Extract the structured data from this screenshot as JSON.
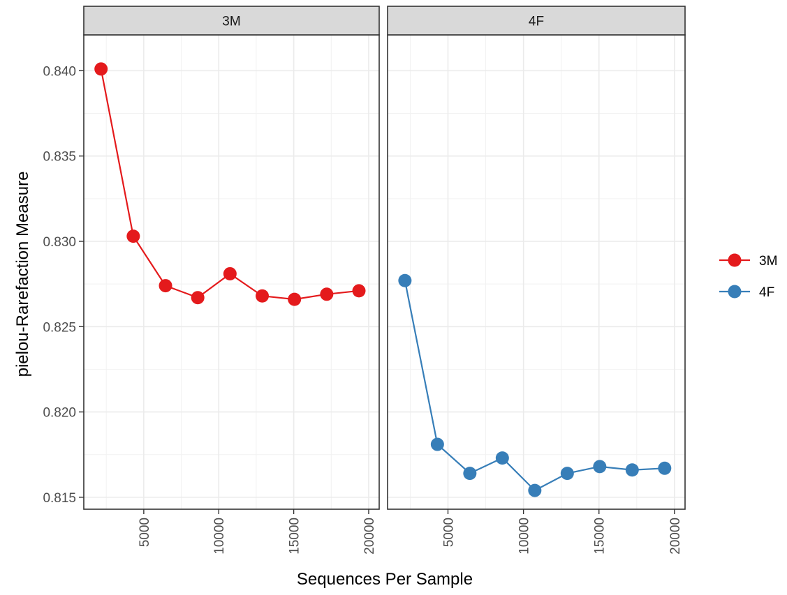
{
  "chart_data": {
    "type": "line",
    "facets": [
      "3M",
      "4F"
    ],
    "xlabel": "Sequences Per Sample",
    "ylabel": "pielou-Rarefaction Measure",
    "xlim": [
      1000,
      20700
    ],
    "ylim": [
      0.8143,
      0.8421
    ],
    "x_ticks": [
      5000,
      10000,
      15000,
      20000
    ],
    "x_tick_labels": [
      "5000",
      "10000",
      "15000",
      "20000"
    ],
    "y_ticks": [
      0.815,
      0.82,
      0.825,
      0.83,
      0.835,
      0.84
    ],
    "y_tick_labels": [
      "0.815",
      "0.820",
      "0.825",
      "0.830",
      "0.835",
      "0.840"
    ],
    "grid": true,
    "legend_position": "right",
    "series": [
      {
        "name": "3M",
        "facet": "3M",
        "color": "#E41A1C",
        "x": [
          2150,
          4300,
          6450,
          8600,
          10750,
          12900,
          15050,
          17200,
          19350
        ],
        "y": [
          0.8401,
          0.8303,
          0.8274,
          0.8267,
          0.8281,
          0.8268,
          0.8266,
          0.8269,
          0.8271
        ]
      },
      {
        "name": "4F",
        "facet": "4F",
        "color": "#377EB8",
        "x": [
          2150,
          4300,
          6450,
          8600,
          10750,
          12900,
          15050,
          17200,
          19350
        ],
        "y": [
          0.8277,
          0.8181,
          0.8164,
          0.8173,
          0.8154,
          0.8164,
          0.8168,
          0.8166,
          0.8167
        ]
      }
    ]
  }
}
